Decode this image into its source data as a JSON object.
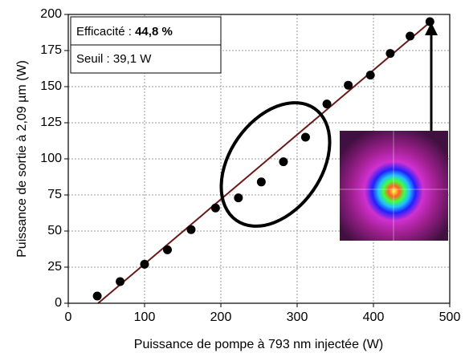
{
  "chart_data": {
    "type": "scatter",
    "xlabel": "Puissance de pompe à 793 nm injectée (W)",
    "ylabel": "Puissance de sortie à 2,09 µm (W)",
    "xlim": [
      0,
      500
    ],
    "xticks": [
      0,
      100,
      200,
      300,
      400,
      500
    ],
    "ylim": [
      0,
      200
    ],
    "yticks": [
      0,
      25,
      50,
      75,
      100,
      125,
      150,
      175,
      200
    ],
    "grid": true,
    "annotations": [
      "Efficacité : ",
      "44,8 %",
      "Seuil : 39,1 W"
    ],
    "series": [
      {
        "type": "scatter",
        "color": "#000000",
        "x": [
          38,
          68,
          100,
          130,
          161,
          193,
          223,
          253,
          282,
          311,
          339,
          367,
          396,
          422,
          448,
          474
        ],
        "values": [
          5,
          15,
          27,
          37,
          51,
          66,
          73,
          84,
          98,
          115,
          138,
          151,
          158,
          173,
          185,
          195
        ]
      },
      {
        "type": "line",
        "color": "#6b1a1a",
        "x": [
          39.1,
          475
        ],
        "values": [
          0,
          195
        ]
      }
    ]
  }
}
